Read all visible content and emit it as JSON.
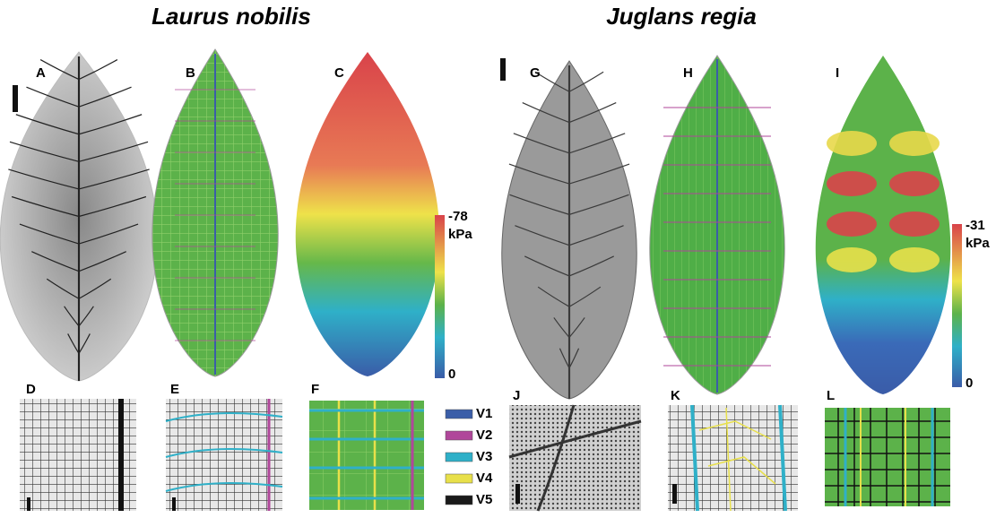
{
  "titles": [
    "Laurus nobilis",
    "Juglans regia"
  ],
  "panels": [
    "A",
    "B",
    "C",
    "D",
    "E",
    "F",
    "G",
    "H",
    "I",
    "J",
    "K",
    "L"
  ],
  "colorbars": [
    {
      "max": "-78",
      "unit": "kPa",
      "min": "0"
    },
    {
      "max": "-31",
      "unit": "kPa",
      "min": "0"
    }
  ],
  "legend": [
    {
      "label": "V1",
      "color": "#3b5ea8"
    },
    {
      "label": "V2",
      "color": "#b0479a"
    },
    {
      "label": "V3",
      "color": "#2fb0c8"
    },
    {
      "label": "V4",
      "color": "#e8e04a"
    },
    {
      "label": "V5",
      "color": "#1a1a1a"
    }
  ]
}
